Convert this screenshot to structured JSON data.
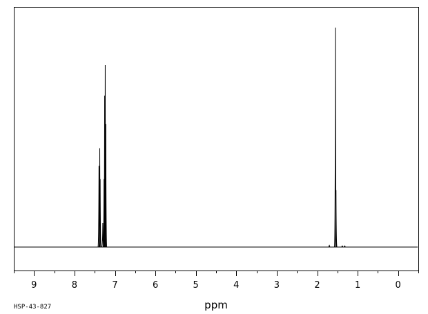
{
  "chart_data": {
    "type": "line",
    "title": "",
    "xlabel": "ppm",
    "ylabel": "",
    "xlim": [
      9.5,
      -0.5
    ],
    "ylim": [
      0,
      100
    ],
    "x_reversed": true,
    "grid": false,
    "x_ticks": [
      9,
      8,
      7,
      6,
      5,
      4,
      3,
      2,
      1,
      0
    ],
    "x_tick_labels": [
      "9",
      "8",
      "7",
      "6",
      "5",
      "4",
      "3",
      "2",
      "1",
      "0"
    ],
    "line_color": "#000000",
    "series": [
      {
        "peaks": [
          {
            "ppm": 7.395,
            "height": 37
          },
          {
            "ppm": 7.375,
            "height": 45
          },
          {
            "ppm": 7.365,
            "height": 31
          },
          {
            "ppm": 7.3,
            "height": 11
          },
          {
            "ppm": 7.27,
            "height": 31
          },
          {
            "ppm": 7.255,
            "height": 69
          },
          {
            "ppm": 7.24,
            "height": 83
          },
          {
            "ppm": 7.225,
            "height": 56
          },
          {
            "ppm": 1.55,
            "height": 100
          },
          {
            "ppm": 1.535,
            "height": 26
          },
          {
            "ppm": 1.7,
            "height": 0.8
          },
          {
            "ppm": 1.38,
            "height": 0.5
          },
          {
            "ppm": 1.32,
            "height": 0.5
          }
        ]
      }
    ]
  },
  "annotations": {
    "sample_id": "HSP-43-827"
  }
}
